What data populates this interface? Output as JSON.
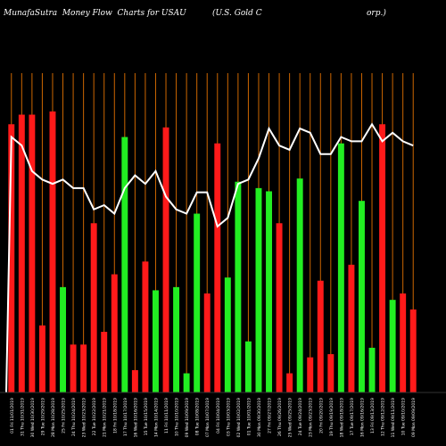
{
  "header": {
    "left": "MunafaSutra  Money Flow  Charts for USAU",
    "right": "(U.S. Gold C                                         orp.)"
  },
  "chart_data": {
    "type": "bar",
    "title": "MunafaSutra  Money Flow  Charts for USAU",
    "subtitle": "(U.S. Gold Corp.)",
    "ylim": [
      0,
      100
    ],
    "categories": [
      "Fri 11/01/2019",
      "Thu 10/31/2019",
      "Wed 10/30/2019",
      "Tue 10/29/2019",
      "Mon 10/28/2019",
      "Fri 10/25/2019",
      "Thu 10/24/2019",
      "Wed 10/23/2019",
      "Tue 10/22/2019",
      "Mon 10/21/2019",
      "Fri 10/18/2019",
      "Thu 10/17/2019",
      "Wed 10/16/2019",
      "Tue 10/15/2019",
      "Mon 10/14/2019",
      "Fri 10/11/2019",
      "Thu 10/10/2019",
      "Wed 10/09/2019",
      "Tue 10/08/2019",
      "Mon 10/07/2019",
      "Fri 10/04/2019",
      "Thu 10/03/2019",
      "Wed 10/02/2019",
      "Tue 10/01/2019",
      "Mon 09/30/2019",
      "Fri 09/27/2019",
      "Thu 09/26/2019",
      "Wed 09/25/2019",
      "Tue 09/24/2019",
      "Mon 09/23/2019",
      "Fri 09/20/2019",
      "Thu 09/19/2019",
      "Wed 09/18/2019",
      "Tue 09/17/2019",
      "Mon 09/16/2019",
      "Fri 09/13/2019",
      "Thu 09/12/2019",
      "Wed 09/11/2019",
      "Tue 09/10/2019",
      "Mon 09/09/2019"
    ],
    "x_tick_labels": [
      "01 Fri 11/01/2019",
      "31 Thu 10/31/2019",
      "30 Wed 10/30/2019",
      "29 Tue 10/29/2019",
      "28 Mon 10/28/2019",
      "25 Fri 10/25/2019",
      "24 Thu 10/24/2019",
      "23 Wed 10/23/2019",
      "22 Tue 10/22/2019",
      "21 Mon 10/21/2019",
      "18 Fri 10/18/2019",
      "17 Thu 10/17/2019",
      "16 Wed 10/16/2019",
      "15 Tue 10/15/2019",
      "14 Mon 10/14/2019",
      "11 Fri 10/11/2019",
      "10 Thu 10/10/2019",
      "09 Wed 10/09/2019",
      "08 Tue 10/08/2019",
      "07 Mon 10/07/2019",
      "04 Fri 10/04/2019",
      "03 Thu 10/03/2019",
      "02 Wed 10/02/2019",
      "01 Tue 10/01/2019",
      "30 Mon 09/30/2019",
      "27 Fri 09/27/2019",
      "26 Thu 09/26/2019",
      "25 Wed 09/25/2019",
      "24 Tue 09/24/2019",
      "23 Mon 09/23/2019",
      "20 Fri 09/20/2019",
      "19 Thu 09/19/2019",
      "18 Wed 09/18/2019",
      "17 Tue 09/17/2019",
      "16 Mon 09/16/2019",
      "13 Fri 09/13/2019",
      "12 Thu 09/12/2019",
      "11 Wed 09/11/2019",
      "10 Tue 09/10/2019",
      "09 Mon 09/09/2019"
    ],
    "bars": [
      {
        "value": 84,
        "flow": "out"
      },
      {
        "value": 87,
        "flow": "out"
      },
      {
        "value": 87,
        "flow": "out"
      },
      {
        "value": 21,
        "flow": "out"
      },
      {
        "value": 88,
        "flow": "out"
      },
      {
        "value": 33,
        "flow": "in"
      },
      {
        "value": 15,
        "flow": "out"
      },
      {
        "value": 15,
        "flow": "out"
      },
      {
        "value": 53,
        "flow": "out"
      },
      {
        "value": 19,
        "flow": "out"
      },
      {
        "value": 37,
        "flow": "out"
      },
      {
        "value": 80,
        "flow": "in"
      },
      {
        "value": 7,
        "flow": "out"
      },
      {
        "value": 41,
        "flow": "out"
      },
      {
        "value": 32,
        "flow": "in"
      },
      {
        "value": 83,
        "flow": "out"
      },
      {
        "value": 33,
        "flow": "in"
      },
      {
        "value": 6,
        "flow": "in"
      },
      {
        "value": 56,
        "flow": "in"
      },
      {
        "value": 31,
        "flow": "out"
      },
      {
        "value": 78,
        "flow": "out"
      },
      {
        "value": 36,
        "flow": "in"
      },
      {
        "value": 66,
        "flow": "in"
      },
      {
        "value": 16,
        "flow": "in"
      },
      {
        "value": 64,
        "flow": "in"
      },
      {
        "value": 63,
        "flow": "in"
      },
      {
        "value": 53,
        "flow": "out"
      },
      {
        "value": 6,
        "flow": "out"
      },
      {
        "value": 67,
        "flow": "in"
      },
      {
        "value": 11,
        "flow": "out"
      },
      {
        "value": 35,
        "flow": "out"
      },
      {
        "value": 12,
        "flow": "out"
      },
      {
        "value": 78,
        "flow": "in"
      },
      {
        "value": 40,
        "flow": "out"
      },
      {
        "value": 60,
        "flow": "in"
      },
      {
        "value": 14,
        "flow": "in"
      },
      {
        "value": 84,
        "flow": "out"
      },
      {
        "value": 29,
        "flow": "in"
      },
      {
        "value": 31,
        "flow": "out"
      },
      {
        "value": 26,
        "flow": "out"
      }
    ],
    "line_values": [
      100,
      98,
      92,
      90,
      89,
      90,
      88,
      88,
      83,
      84,
      82,
      88,
      91,
      89,
      92,
      86,
      83,
      82,
      87,
      87,
      79,
      81,
      89,
      90,
      95,
      102,
      98,
      97,
      102,
      101,
      96,
      96,
      100,
      99,
      99,
      103,
      99,
      101,
      99,
      98
    ],
    "line_range": [
      40,
      115
    ],
    "colors": {
      "inflow": "#22ee22",
      "outflow": "#ff1a1a",
      "line": "#ffffff",
      "gridline": "#cc6600",
      "background": "#000000"
    }
  }
}
